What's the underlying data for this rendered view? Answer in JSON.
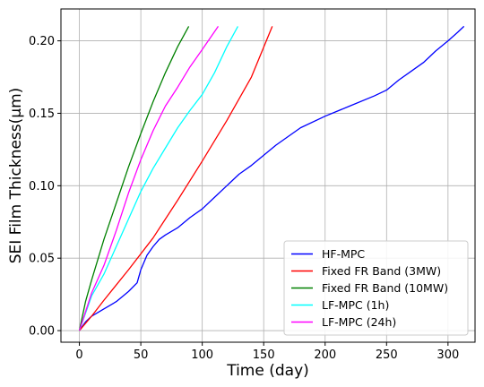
{
  "chart_data": {
    "type": "line",
    "title": "",
    "xlabel": "Time (day)",
    "ylabel": "SEI Film Thickness(μm)",
    "xlim": [
      -15,
      322
    ],
    "ylim": [
      -0.008,
      0.222
    ],
    "xticks": [
      0,
      50,
      100,
      150,
      200,
      250,
      300
    ],
    "yticks": [
      0.0,
      0.05,
      0.1,
      0.15,
      0.2
    ],
    "ytick_labels": [
      "0.00",
      "0.05",
      "0.10",
      "0.15",
      "0.20"
    ],
    "grid": true,
    "legend_position": "lower-right",
    "series": [
      {
        "name": "HF-MPC",
        "color": "#0000ff",
        "x": [
          0,
          5,
          10,
          20,
          30,
          40,
          47,
          50,
          55,
          60,
          65,
          70,
          80,
          90,
          100,
          110,
          120,
          130,
          140,
          160,
          180,
          200,
          220,
          240,
          250,
          260,
          270,
          280,
          290,
          300,
          308,
          313
        ],
        "y": [
          0.0,
          0.006,
          0.01,
          0.015,
          0.02,
          0.027,
          0.033,
          0.042,
          0.052,
          0.058,
          0.063,
          0.066,
          0.071,
          0.078,
          0.084,
          0.092,
          0.1,
          0.108,
          0.114,
          0.128,
          0.14,
          0.148,
          0.155,
          0.162,
          0.166,
          0.173,
          0.179,
          0.185,
          0.193,
          0.2,
          0.206,
          0.21
        ]
      },
      {
        "name": "Fixed FR Band (3MW)",
        "color": "#ff0000",
        "x": [
          0,
          10,
          20,
          40,
          60,
          80,
          100,
          120,
          140,
          157
        ],
        "y": [
          0.0,
          0.01,
          0.021,
          0.042,
          0.064,
          0.09,
          0.117,
          0.145,
          0.175,
          0.21
        ]
      },
      {
        "name": "Fixed FR Band (10MW)",
        "color": "#008000",
        "x": [
          0,
          5,
          10,
          20,
          30,
          40,
          50,
          60,
          70,
          80,
          89
        ],
        "y": [
          0.0,
          0.02,
          0.035,
          0.063,
          0.088,
          0.113,
          0.136,
          0.158,
          0.178,
          0.196,
          0.21
        ]
      },
      {
        "name": "LF-MPC (1h)",
        "color": "#00ffff",
        "x": [
          0,
          10,
          20,
          30,
          40,
          50,
          60,
          70,
          80,
          90,
          100,
          110,
          120,
          129
        ],
        "y": [
          0.0,
          0.024,
          0.039,
          0.058,
          0.077,
          0.096,
          0.112,
          0.126,
          0.14,
          0.152,
          0.163,
          0.178,
          0.196,
          0.21
        ]
      },
      {
        "name": "LF-MPC (24h)",
        "color": "#ff00ff",
        "x": [
          0,
          10,
          20,
          30,
          40,
          50,
          60,
          70,
          80,
          90,
          100,
          113
        ],
        "y": [
          0.0,
          0.026,
          0.045,
          0.069,
          0.095,
          0.118,
          0.138,
          0.155,
          0.168,
          0.182,
          0.194,
          0.21
        ]
      }
    ]
  }
}
